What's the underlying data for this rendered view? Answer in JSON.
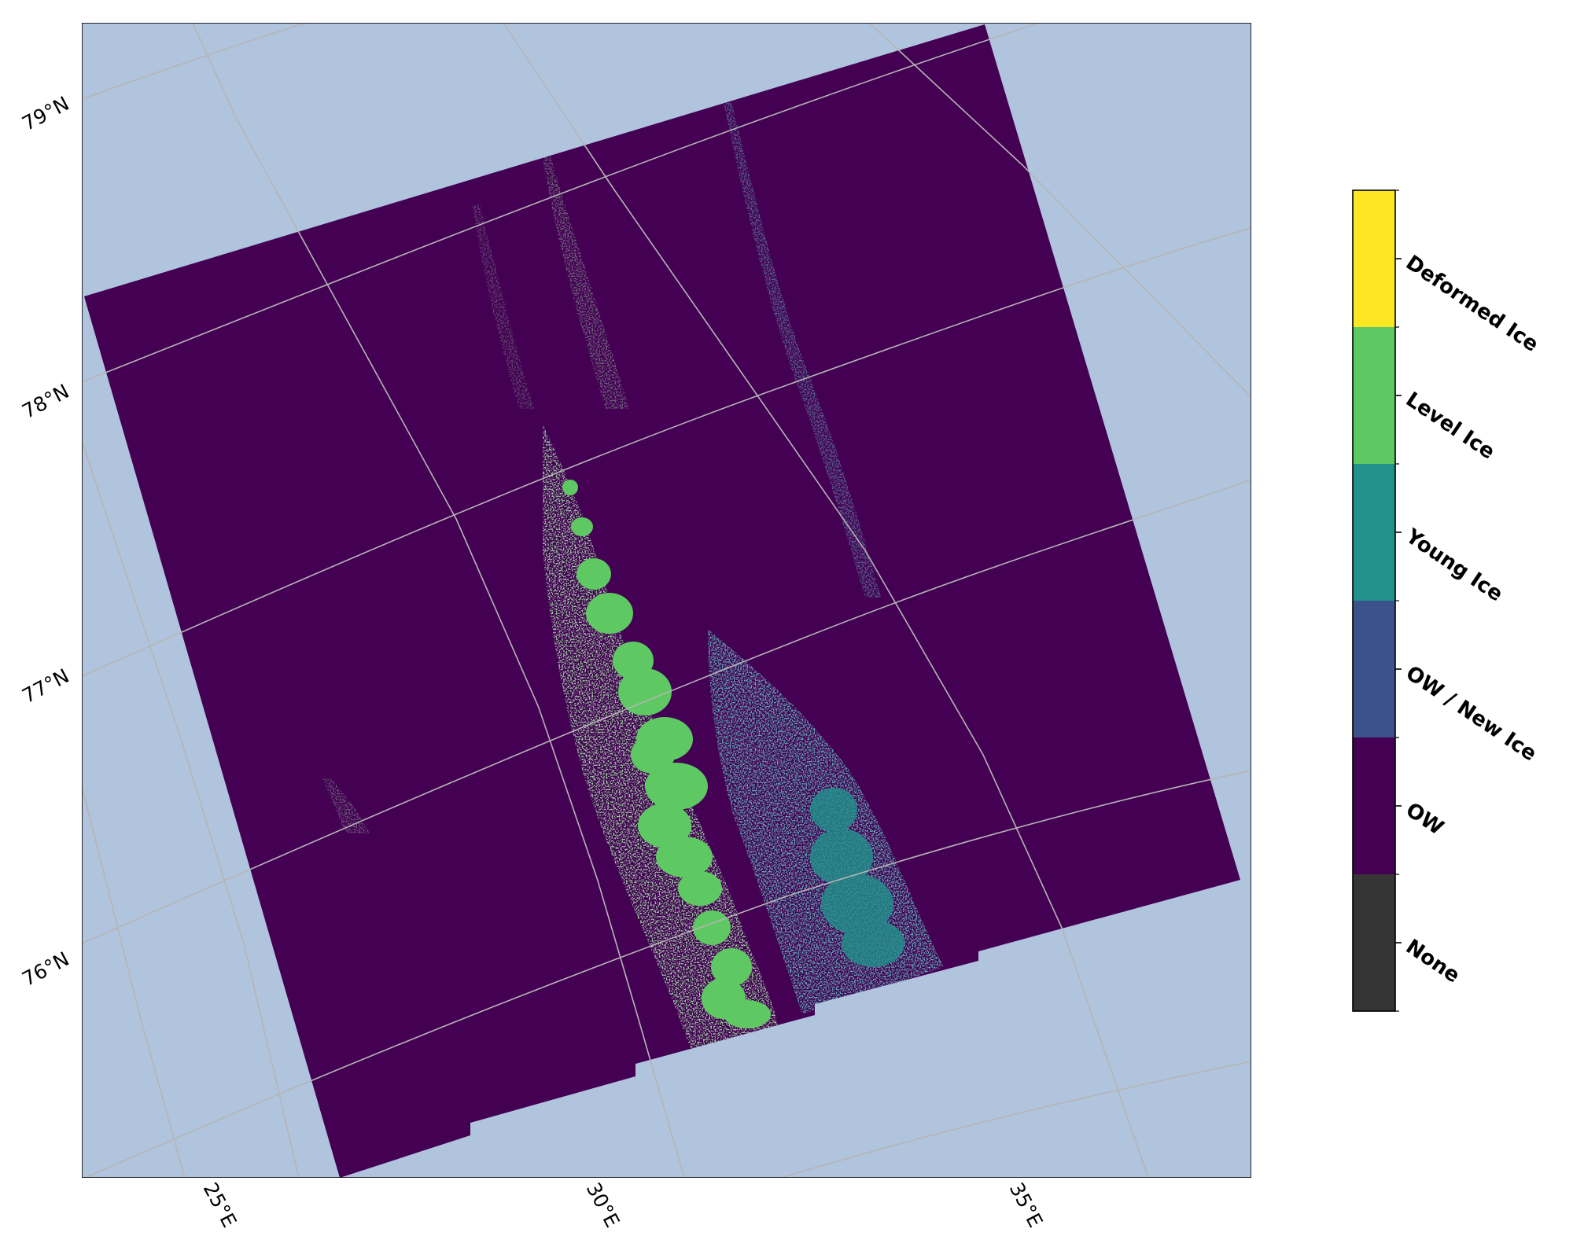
{
  "map": {
    "ocean_color": "#b0c4de",
    "gridline_color": "#b5b5b5",
    "lat_labels": [
      "79°N",
      "78°N",
      "77°N",
      "76°N"
    ],
    "lon_labels": [
      "25°E",
      "30°E",
      "35°E"
    ]
  },
  "colorbar": {
    "classes": [
      {
        "label": "None",
        "color": "#353535"
      },
      {
        "label": "OW",
        "color": "#440154"
      },
      {
        "label": "OW / New Ice",
        "color": "#3b528b"
      },
      {
        "label": "Young Ice",
        "color": "#21918c"
      },
      {
        "label": "Level Ice",
        "color": "#5ec962"
      },
      {
        "label": "Deformed Ice",
        "color": "#fde725"
      }
    ]
  },
  "ice_classes_present": [
    "OW",
    "Level Ice",
    "Young Ice"
  ]
}
